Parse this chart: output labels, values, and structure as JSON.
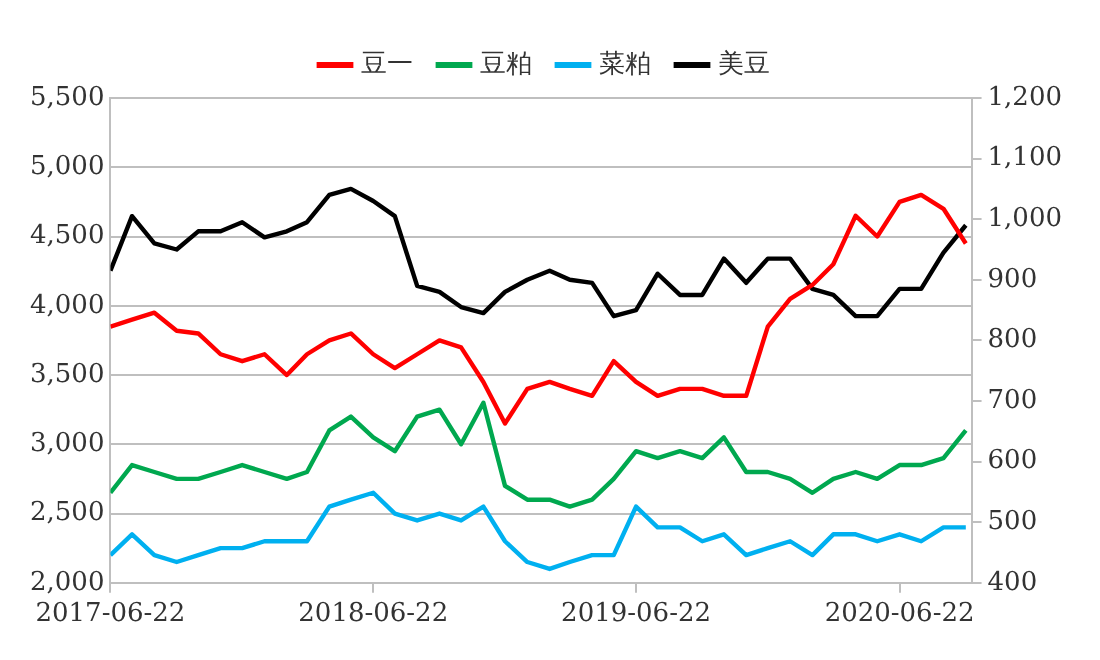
{
  "chart_data": {
    "type": "line",
    "x": [
      "2017-06-22",
      "2017-07-22",
      "2017-08-22",
      "2017-09-22",
      "2017-10-22",
      "2017-11-22",
      "2017-12-22",
      "2018-01-22",
      "2018-02-22",
      "2018-03-22",
      "2018-04-22",
      "2018-05-22",
      "2018-06-22",
      "2018-07-22",
      "2018-08-22",
      "2018-09-22",
      "2018-10-22",
      "2018-11-22",
      "2018-12-22",
      "2019-01-22",
      "2019-02-22",
      "2019-03-22",
      "2019-04-22",
      "2019-05-22",
      "2019-06-22",
      "2019-07-22",
      "2019-08-22",
      "2019-09-22",
      "2019-10-22",
      "2019-11-22",
      "2019-12-22",
      "2020-01-22",
      "2020-02-22",
      "2020-03-22",
      "2020-04-22",
      "2020-05-22",
      "2020-06-22",
      "2020-07-22",
      "2020-08-22",
      "2020-09-22"
    ],
    "series": [
      {
        "name": "豆一",
        "color": "#ff0000",
        "values": [
          3850,
          3900,
          3950,
          3820,
          3800,
          3650,
          3600,
          3650,
          3500,
          3650,
          3750,
          3800,
          3650,
          3550,
          3650,
          3750,
          3700,
          3450,
          3150,
          3400,
          3450,
          3400,
          3350,
          3600,
          3450,
          3350,
          3400,
          3400,
          3350,
          3350,
          3850,
          4050,
          4150,
          4300,
          4650,
          4500,
          4750,
          4800,
          4700,
          4450
        ]
      },
      {
        "name": "豆粕",
        "color": "#00a84f",
        "values": [
          2650,
          2850,
          2800,
          2750,
          2750,
          2800,
          2850,
          2800,
          2750,
          2800,
          3100,
          3200,
          3050,
          2950,
          3200,
          3250,
          3000,
          3300,
          2700,
          2600,
          2600,
          2550,
          2600,
          2750,
          2950,
          2900,
          2950,
          2900,
          3050,
          2800,
          2800,
          2750,
          2650,
          2750,
          2800,
          2750,
          2850,
          2850,
          2900,
          3100
        ]
      },
      {
        "name": "菜粕",
        "color": "#00b0f0",
        "values": [
          2200,
          2350,
          2200,
          2150,
          2200,
          2250,
          2250,
          2300,
          2300,
          2300,
          2550,
          2600,
          2650,
          2500,
          2450,
          2500,
          2450,
          2550,
          2300,
          2150,
          2100,
          2150,
          2200,
          2200,
          2550,
          2400,
          2400,
          2300,
          2350,
          2200,
          2250,
          2300,
          2200,
          2350,
          2350,
          2300,
          2350,
          2300,
          2400,
          2400
        ]
      },
      {
        "name": "美豆",
        "color": "#000000",
        "axis": "y2",
        "values": [
          915,
          1005,
          960,
          950,
          980,
          980,
          995,
          970,
          980,
          995,
          1040,
          1050,
          1030,
          1005,
          890,
          880,
          855,
          845,
          880,
          900,
          915,
          900,
          895,
          840,
          850,
          910,
          875,
          875,
          935,
          895,
          935,
          935,
          885,
          875,
          840,
          840,
          885,
          885,
          945,
          990
        ]
      }
    ],
    "xlim": [
      "2017-06-22",
      "2020-09-30"
    ],
    "xticks": [
      "2017-06-22",
      "2018-06-22",
      "2019-06-22",
      "2020-06-22"
    ],
    "ylim": [
      2000,
      5500
    ],
    "yticks": [
      {
        "value": 2000,
        "label": "2,000"
      },
      {
        "value": 2500,
        "label": "2,500"
      },
      {
        "value": 3000,
        "label": "3,000"
      },
      {
        "value": 3500,
        "label": "3,500"
      },
      {
        "value": 4000,
        "label": "4,000"
      },
      {
        "value": 4500,
        "label": "4,500"
      },
      {
        "value": 5000,
        "label": "5,000"
      },
      {
        "value": 5500,
        "label": "5,500"
      }
    ],
    "y2lim": [
      400,
      1200
    ],
    "y2ticks": [
      400,
      500,
      600,
      700,
      800,
      900,
      {
        "value": 1000,
        "label": "1,000"
      },
      {
        "value": 1100,
        "label": "1,100"
      },
      {
        "value": 1200,
        "label": "1,200"
      }
    ],
    "grid": "y",
    "legend": "top",
    "marker": "none",
    "line_style": "solid"
  }
}
